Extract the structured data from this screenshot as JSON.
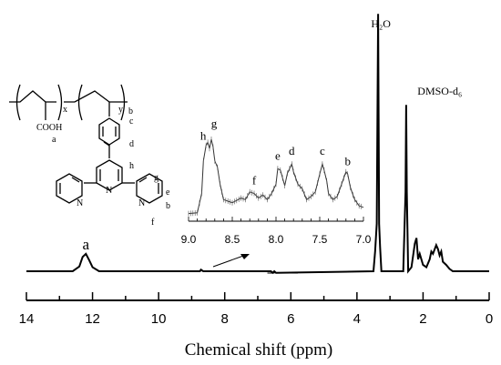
{
  "chart_data": [
    {
      "type": "line",
      "title": "",
      "xlabel": "Chemical shift (ppm)",
      "ylabel": "",
      "xlim": [
        14,
        0
      ],
      "x_reversed": true,
      "grid": false,
      "xticks": [
        14,
        12,
        10,
        8,
        6,
        4,
        2,
        0
      ],
      "xtick_labels": [
        "14",
        "12",
        "10",
        "8",
        "6",
        "4",
        "2",
        "0"
      ],
      "series": [
        {
          "x": [
            14.0,
            12.6,
            12.4,
            12.3,
            12.2,
            12.1,
            12.0,
            11.8,
            8.75,
            8.72,
            8.65,
            6.6,
            6.55,
            6.5,
            6.45,
            3.5,
            3.45,
            3.4,
            3.36,
            3.33,
            3.3,
            3.26,
            3.2,
            2.6,
            2.53,
            2.51,
            2.49,
            2.45,
            2.35,
            2.25,
            2.2,
            2.15,
            2.1,
            2.0,
            1.9,
            1.8,
            1.75,
            1.7,
            1.6,
            1.55,
            1.5,
            1.45,
            1.4,
            1.3,
            1.2,
            1.1,
            0.9,
            0.0
          ],
          "y": [
            0,
            0,
            6,
            18,
            22,
            14,
            5,
            0,
            0,
            2,
            0,
            0,
            -2,
            0,
            -2,
            0,
            25,
            60,
            325,
            60,
            30,
            0,
            0,
            0,
            100,
            210,
            100,
            0,
            5,
            35,
            42,
            15,
            22,
            8,
            5,
            15,
            25,
            22,
            33,
            28,
            20,
            25,
            12,
            8,
            3,
            0,
            0,
            0
          ]
        }
      ],
      "annotations": [
        {
          "text": "a",
          "x": 12.2
        },
        {
          "text": "H₂O",
          "x": 3.33
        },
        {
          "text": "DMSO-d₆",
          "x": 2.5
        }
      ]
    },
    {
      "type": "line",
      "title": "",
      "xlabel": "",
      "ylabel": "",
      "xlim": [
        9.0,
        7.0
      ],
      "x_reversed": true,
      "xticks": [
        9.0,
        8.5,
        8.0,
        7.5,
        7.0
      ],
      "xtick_labels": [
        "9.0",
        "8.5",
        "8.0",
        "7.5",
        "7.0"
      ],
      "series": [
        {
          "x": [
            9.0,
            8.9,
            8.85,
            8.83,
            8.8,
            8.78,
            8.76,
            8.74,
            8.72,
            8.7,
            8.67,
            8.64,
            8.6,
            8.55,
            8.5,
            8.45,
            8.4,
            8.35,
            8.3,
            8.25,
            8.2,
            8.15,
            8.1,
            8.05,
            8.0,
            7.98,
            7.95,
            7.9,
            7.87,
            7.82,
            7.8,
            7.75,
            7.7,
            7.65,
            7.6,
            7.55,
            7.5,
            7.47,
            7.45,
            7.42,
            7.4,
            7.35,
            7.3,
            7.25,
            7.2,
            7.18,
            7.15,
            7.12,
            7.1,
            7.05,
            7.0
          ],
          "y": [
            4,
            5,
            30,
            72,
            92,
            96,
            88,
            100,
            90,
            72,
            64,
            42,
            22,
            20,
            18,
            21,
            24,
            22,
            32,
            30,
            24,
            28,
            22,
            30,
            42,
            62,
            60,
            40,
            56,
            68,
            58,
            42,
            36,
            22,
            26,
            32,
            55,
            68,
            60,
            46,
            30,
            22,
            26,
            42,
            58,
            55,
            38,
            28,
            22,
            14,
            12
          ]
        }
      ],
      "labels": [
        {
          "text": "h",
          "x": 8.78
        },
        {
          "text": "g",
          "x": 8.74
        },
        {
          "text": "f",
          "x": 8.25
        },
        {
          "text": "e",
          "x": 7.98
        },
        {
          "text": "d",
          "x": 7.82
        },
        {
          "text": "c",
          "x": 7.47
        },
        {
          "text": "b",
          "x": 7.18
        }
      ]
    }
  ],
  "structure": {
    "labels": {
      "x": "x",
      "y": "y",
      "a": "a",
      "cooh": "COOH",
      "b": "b",
      "c": "c",
      "d": "d",
      "e": "e",
      "f": "f",
      "g": "g",
      "h": "h",
      "n_left": "N",
      "n_center": "N",
      "n_right": "N"
    }
  }
}
